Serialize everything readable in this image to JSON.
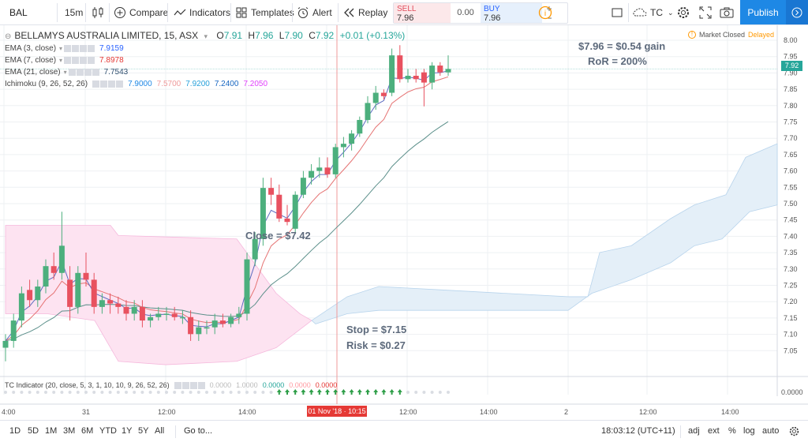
{
  "toolbar": {
    "symbol": "BAL",
    "interval": "15m",
    "compare": "Compare",
    "indicators": "Indicators",
    "templates": "Templates",
    "alert": "Alert",
    "replay": "Replay",
    "trade": {
      "sell_label": "SELL",
      "sell_value": "7.96",
      "spread": "0.00",
      "buy_label": "BUY",
      "buy_value": "7.96"
    },
    "layout_name": "TC",
    "publish": "Publish"
  },
  "legend": {
    "title": "BELLAMYS AUSTRALIA LIMITED, 15, ASX",
    "ohlc": {
      "o_label": "O",
      "o": "7.91",
      "h_label": "H",
      "h": "7.96",
      "l_label": "L",
      "l": "7.90",
      "c_label": "C",
      "c": "7.92",
      "change": "+0.01 (+0.13%)"
    },
    "indicators": [
      {
        "name": "EMA (3, close)",
        "value": "7.9159",
        "color": "#2962ff"
      },
      {
        "name": "EMA (7, close)",
        "value": "7.8978",
        "color": "#e53935"
      },
      {
        "name": "EMA (21, close)",
        "value": "7.7543",
        "color": "#2f4f6f"
      },
      {
        "name": "Ichimoku (9, 26, 52, 26)",
        "values": [
          "7.9000",
          "7.5700",
          "7.9200",
          "7.2400",
          "7.2050"
        ],
        "colors": [
          "#1e88e5",
          "#ef9a9a",
          "#26a0da",
          "#1565c0",
          "#e040fb"
        ]
      }
    ]
  },
  "status": {
    "market": "Market Closed",
    "delayed": "Delayed"
  },
  "annotations": {
    "gain": "$7.96 = $0.54 gain",
    "ror": "RoR = 200%",
    "close": "Close = $7.42",
    "stop": "Stop = $7.15",
    "risk": "Risk = $0.27"
  },
  "tc_indicator": {
    "name": "TC Indicator (20, close, 5, 3, 1, 10, 10, 9, 26, 52, 26)",
    "values": [
      "0.0000",
      "1.0000",
      "0.0000",
      "0.0000",
      "0.0000"
    ],
    "scale": "0.0000"
  },
  "price_axis": {
    "labels": [
      "8.00",
      "7.95",
      "7.90",
      "7.85",
      "7.80",
      "7.75",
      "7.70",
      "7.65",
      "7.60",
      "7.55",
      "7.50",
      "7.45",
      "7.40",
      "7.35",
      "7.30",
      "7.25",
      "7.20",
      "7.15",
      "7.10",
      "7.05"
    ],
    "last_price": "7.92"
  },
  "time_axis": {
    "labels": [
      "4:00",
      "31",
      "12:00",
      "14:00",
      "12:00",
      "14:00",
      "2",
      "12:00",
      "14:00"
    ],
    "crosshair": "01 Nov '18 · 10:15"
  },
  "bottom": {
    "ranges": [
      "1D",
      "5D",
      "1M",
      "3M",
      "6M",
      "YTD",
      "1Y",
      "5Y",
      "All"
    ],
    "goto": "Go to...",
    "time": "18:03:12 (UTC+11)",
    "options": [
      "adj",
      "ext",
      "%",
      "log",
      "auto"
    ]
  },
  "chart_data": {
    "type": "candlestick",
    "title": "BELLAMYS AUSTRALIA LIMITED, 15, ASX",
    "ylim": [
      7.02,
      8.03
    ],
    "candles": [
      [
        7.1,
        7.14,
        7.06,
        7.12
      ],
      [
        7.12,
        7.2,
        7.1,
        7.18
      ],
      [
        7.18,
        7.28,
        7.16,
        7.26
      ],
      [
        7.27,
        7.3,
        7.22,
        7.24
      ],
      [
        7.24,
        7.3,
        7.22,
        7.28
      ],
      [
        7.28,
        7.36,
        7.26,
        7.34
      ],
      [
        7.34,
        7.38,
        7.3,
        7.32
      ],
      [
        7.32,
        7.5,
        7.3,
        7.4
      ],
      [
        7.3,
        7.34,
        7.18,
        7.22
      ],
      [
        7.22,
        7.34,
        7.2,
        7.32
      ],
      [
        7.32,
        7.38,
        7.28,
        7.3
      ],
      [
        7.3,
        7.32,
        7.2,
        7.22
      ],
      [
        7.22,
        7.26,
        7.2,
        7.24
      ],
      [
        7.24,
        7.26,
        7.2,
        7.23
      ],
      [
        7.23,
        7.25,
        7.2,
        7.22
      ],
      [
        7.22,
        7.24,
        7.18,
        7.2
      ],
      [
        7.2,
        7.24,
        7.18,
        7.22
      ],
      [
        7.22,
        7.24,
        7.16,
        7.18
      ],
      [
        7.18,
        7.2,
        7.16,
        7.19
      ],
      [
        7.19,
        7.22,
        7.18,
        7.2
      ],
      [
        7.2,
        7.22,
        7.18,
        7.2
      ],
      [
        7.2,
        7.22,
        7.18,
        7.19
      ],
      [
        7.19,
        7.21,
        7.17,
        7.19
      ],
      [
        7.19,
        7.21,
        7.12,
        7.14
      ],
      [
        7.14,
        7.18,
        7.12,
        7.16
      ],
      [
        7.16,
        7.18,
        7.14,
        7.16
      ],
      [
        7.16,
        7.2,
        7.14,
        7.18
      ],
      [
        7.18,
        7.2,
        7.16,
        7.17
      ],
      [
        7.17,
        7.2,
        7.16,
        7.19
      ],
      [
        7.19,
        7.22,
        7.17,
        7.2
      ],
      [
        7.2,
        7.38,
        7.18,
        7.36
      ],
      [
        7.36,
        7.44,
        7.34,
        7.42
      ],
      [
        7.42,
        7.6,
        7.4,
        7.57
      ],
      [
        7.57,
        7.6,
        7.52,
        7.55
      ],
      [
        7.55,
        7.58,
        7.47,
        7.48
      ],
      [
        7.48,
        7.52,
        7.46,
        7.47
      ],
      [
        7.45,
        7.56,
        7.44,
        7.55
      ],
      [
        7.55,
        7.62,
        7.54,
        7.6
      ],
      [
        7.6,
        7.64,
        7.58,
        7.62
      ],
      [
        7.62,
        7.66,
        7.6,
        7.63
      ],
      [
        7.63,
        7.66,
        7.6,
        7.61
      ],
      [
        7.61,
        7.7,
        7.6,
        7.69
      ],
      [
        7.69,
        7.72,
        7.66,
        7.7
      ],
      [
        7.7,
        7.74,
        7.68,
        7.73
      ],
      [
        7.73,
        7.78,
        7.72,
        7.77
      ],
      [
        7.77,
        7.84,
        7.76,
        7.82
      ],
      [
        7.82,
        7.87,
        7.8,
        7.85
      ],
      [
        7.85,
        7.86,
        7.83,
        7.84
      ],
      [
        7.85,
        7.98,
        7.84,
        7.96
      ],
      [
        7.96,
        7.99,
        7.88,
        7.89
      ],
      [
        7.89,
        7.92,
        7.88,
        7.9
      ],
      [
        7.9,
        7.92,
        7.88,
        7.89
      ],
      [
        7.91,
        7.92,
        7.81,
        7.88
      ],
      [
        7.88,
        7.94,
        7.86,
        7.93
      ],
      [
        7.93,
        7.94,
        7.9,
        7.91
      ],
      [
        7.91,
        7.96,
        7.9,
        7.92
      ]
    ],
    "tc_arrows_from": 34,
    "tc_arrows_to": 49
  }
}
